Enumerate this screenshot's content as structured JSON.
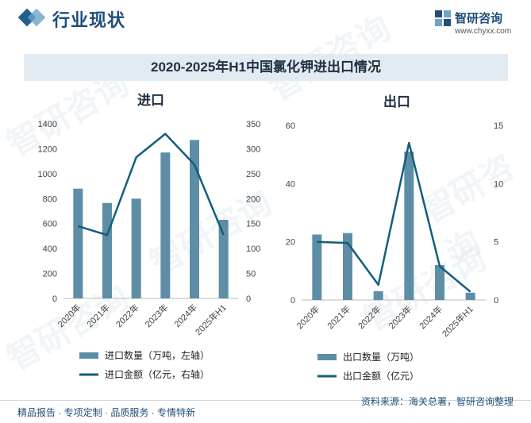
{
  "header": {
    "section_title": "行业现状"
  },
  "logo": {
    "name": "智研咨询",
    "url": "www.chyxx.com",
    "watermark_text": "智研咨询"
  },
  "chart_title": "2020-2025年H1中国氯化钾进出口情况",
  "footer": {
    "left": "精品报告 · 专项定制 · 品质服务 · 专情特新",
    "source": "资料来源：海关总署，智研咨询整理"
  },
  "colors": {
    "bar": "#5e8ea6",
    "line": "#135e7c",
    "title_bar": "#e3ebf2",
    "accent": "#1f4e79"
  },
  "chart_data": [
    {
      "type": "bar",
      "title": "进口",
      "categories": [
        "2020年",
        "2021年",
        "2022年",
        "2023年",
        "2024年",
        "2025年H1"
      ],
      "series": [
        {
          "name": "进口数量（万吨，左轴）",
          "type": "bar",
          "axis": "left",
          "values": [
            880,
            765,
            800,
            1170,
            1270,
            630
          ]
        },
        {
          "name": "进口金额（亿元，右轴）",
          "type": "line",
          "axis": "right",
          "values": [
            145,
            127,
            283,
            330,
            268,
            127
          ]
        }
      ],
      "y_left": {
        "min": 0,
        "max": 1400,
        "ticks": [
          0,
          200,
          400,
          600,
          800,
          1000,
          1200,
          1400
        ]
      },
      "y_right": {
        "min": 0,
        "max": 350,
        "ticks": [
          0,
          50,
          100,
          150,
          200,
          250,
          300,
          350
        ]
      },
      "legend_position": "bottom-left",
      "grid": false
    },
    {
      "type": "bar",
      "title": "出口",
      "categories": [
        "2020年",
        "2021年",
        "2022年",
        "2023年",
        "2024年",
        "2025年H1"
      ],
      "series": [
        {
          "name": "出口数量（万吨）",
          "type": "bar",
          "axis": "left",
          "values": [
            22.5,
            23,
            3,
            51,
            12,
            2.5
          ]
        },
        {
          "name": "出口金额（亿元）",
          "type": "line",
          "axis": "right",
          "values": [
            5,
            4.9,
            1.3,
            13.5,
            2.9,
            0.7
          ]
        }
      ],
      "y_left": {
        "min": 0,
        "max": 60,
        "ticks": [
          0,
          20,
          40,
          60
        ]
      },
      "y_right": {
        "min": 0,
        "max": 15,
        "ticks": [
          0,
          5,
          10,
          15
        ]
      },
      "legend_position": "bottom-left",
      "grid": false
    }
  ]
}
